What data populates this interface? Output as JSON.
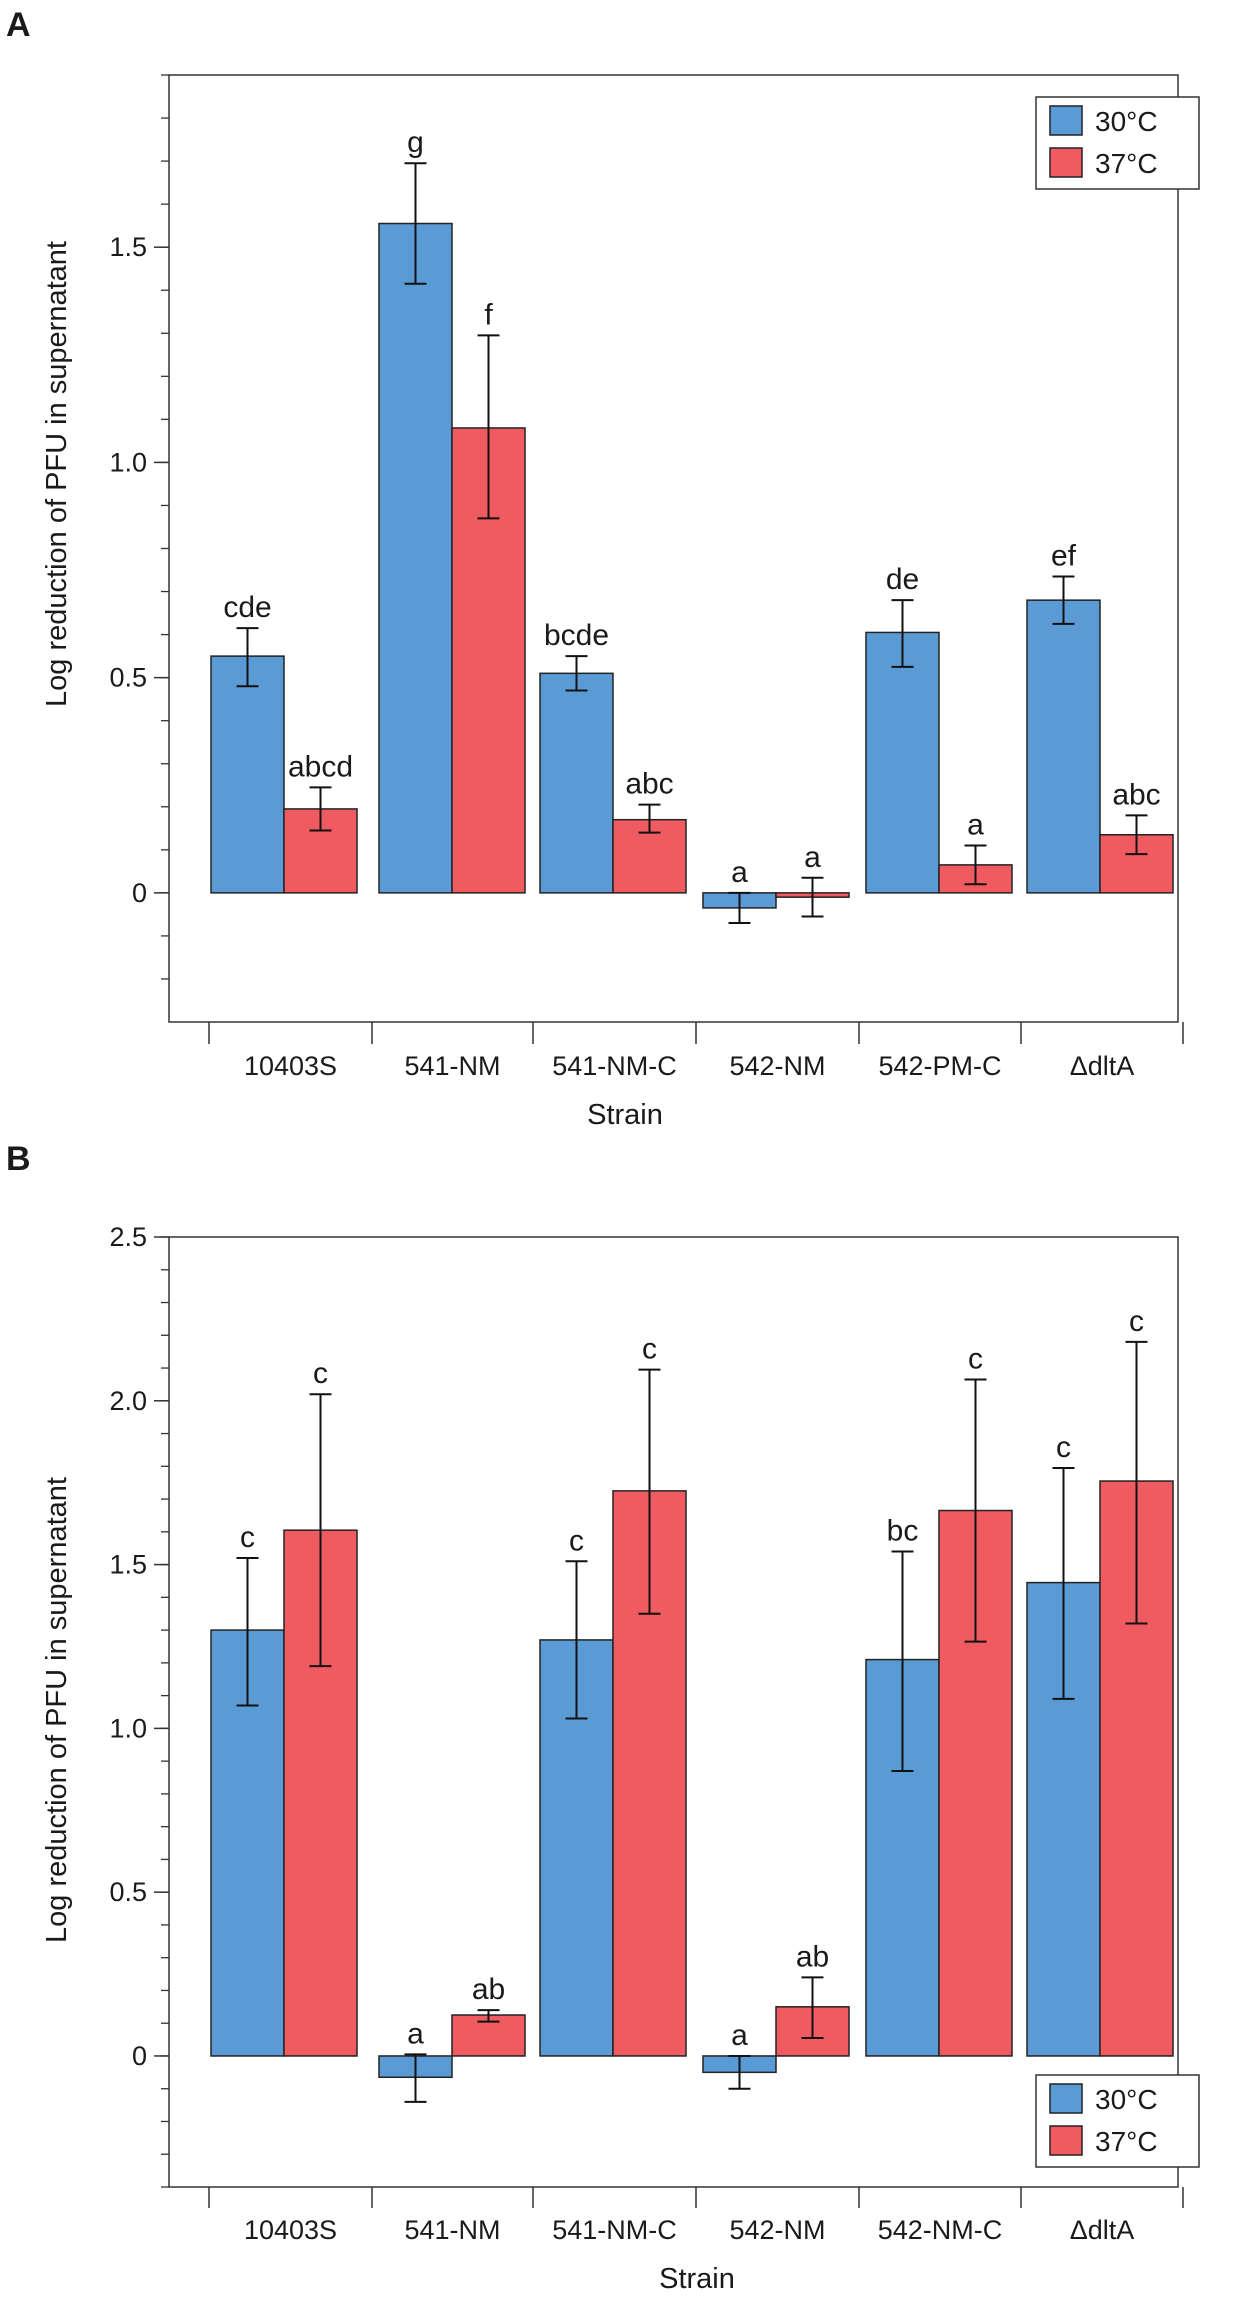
{
  "chart_data": [
    {
      "panel": "A",
      "type": "bar",
      "xlabel": "Strain",
      "ylabel": "Log reduction of PFU in supernatant",
      "ylim": [
        -0.3,
        1.9
      ],
      "yticks": [
        0,
        0.5,
        1.0,
        1.5
      ],
      "ytick_labels": [
        "0",
        "0.5",
        "1.0",
        "1.5"
      ],
      "minor_step": 0.1,
      "categories": [
        "10403S",
        "541-NM",
        "541-NM-C",
        "542-NM",
        "542-PM-C",
        "ΔdltA"
      ],
      "legend_position": "top-right",
      "series": [
        {
          "name": "30°C",
          "values": [
            0.55,
            1.555,
            0.51,
            -0.035,
            0.605,
            0.68
          ],
          "err_low": [
            0.48,
            1.415,
            0.47,
            -0.07,
            0.525,
            0.625
          ],
          "err_high": [
            0.615,
            1.695,
            0.55,
            0.0,
            0.68,
            0.735
          ],
          "letters": [
            "cde",
            "g",
            "bcde",
            "a",
            "de",
            "ef"
          ]
        },
        {
          "name": "37°C",
          "values": [
            0.195,
            1.08,
            0.17,
            -0.01,
            0.065,
            0.135
          ],
          "err_low": [
            0.145,
            0.87,
            0.14,
            -0.055,
            0.02,
            0.09
          ],
          "err_high": [
            0.245,
            1.295,
            0.205,
            0.035,
            0.11,
            0.18
          ],
          "letters": [
            "abcd",
            "f",
            "abc",
            "a",
            "a",
            "abc"
          ]
        }
      ]
    },
    {
      "panel": "B",
      "type": "bar",
      "xlabel": "Strain",
      "ylabel": "Log reduction of PFU in supernatant",
      "ylim": [
        -0.4,
        2.5
      ],
      "yticks": [
        0,
        0.5,
        1.0,
        1.5,
        2.0,
        2.5
      ],
      "ytick_labels": [
        "0",
        "0.5",
        "1.0",
        "1.5",
        "2.0",
        "2.5"
      ],
      "minor_step": 0.1,
      "categories": [
        "10403S",
        "541-NM",
        "541-NM-C",
        "542-NM",
        "542-NM-C",
        "ΔdltA"
      ],
      "legend_position": "bottom-right",
      "series": [
        {
          "name": "30°C",
          "values": [
            1.3,
            -0.065,
            1.27,
            -0.05,
            1.21,
            1.445
          ],
          "err_low": [
            1.07,
            -0.14,
            1.03,
            -0.1,
            0.87,
            1.09
          ],
          "err_high": [
            1.52,
            0.005,
            1.51,
            0.0,
            1.54,
            1.795
          ],
          "letters": [
            "c",
            "a",
            "c",
            "a",
            "bc",
            "c"
          ]
        },
        {
          "name": "37°C",
          "values": [
            1.605,
            0.125,
            1.725,
            0.15,
            1.665,
            1.755
          ],
          "err_low": [
            1.19,
            0.105,
            1.35,
            0.055,
            1.265,
            1.32
          ],
          "err_high": [
            2.02,
            0.14,
            2.095,
            0.24,
            2.065,
            2.18
          ],
          "letters": [
            "c",
            "ab",
            "c",
            "ab",
            "c",
            "c"
          ]
        }
      ]
    }
  ],
  "colors": {
    "series": [
      "#5b9bd5",
      "#f05a61"
    ],
    "axis": "#333333",
    "text": "#1a1a1a"
  }
}
